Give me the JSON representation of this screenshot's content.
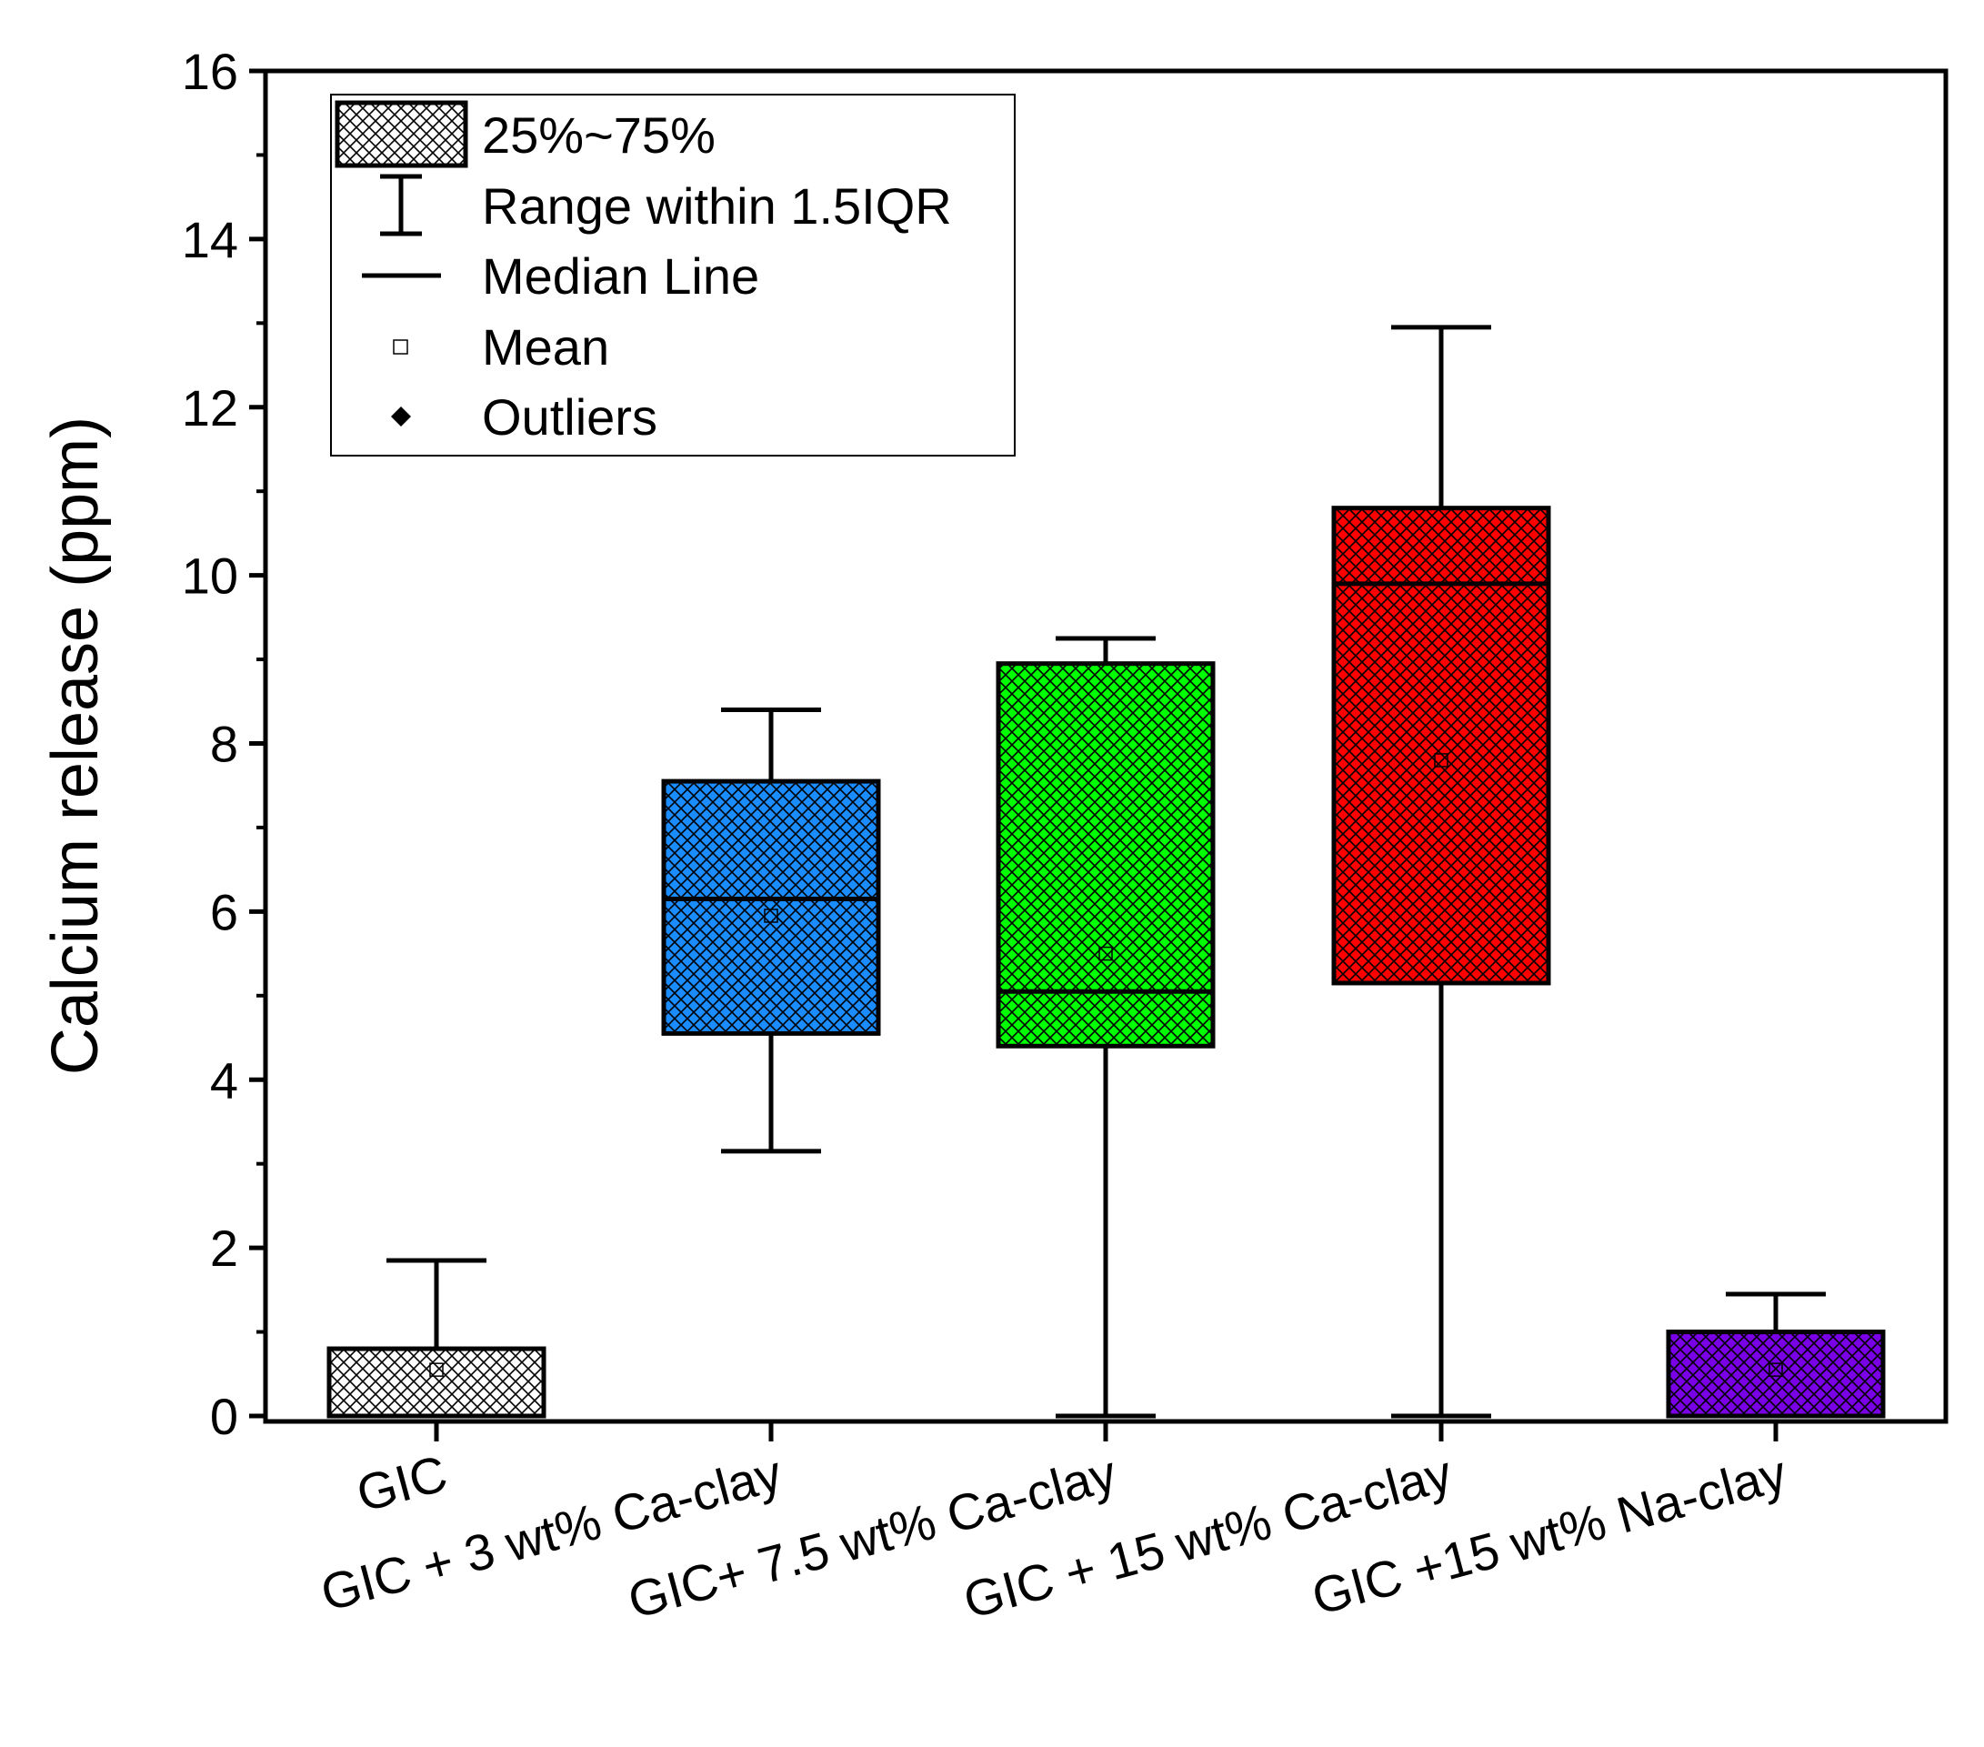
{
  "chart_data": {
    "type": "box",
    "title": "",
    "xlabel": "",
    "ylabel": "Calcium release (ppm)",
    "ylim": [
      0,
      16
    ],
    "yticks": [
      0,
      2,
      4,
      6,
      8,
      10,
      12,
      14,
      16
    ],
    "categories": [
      "GIC",
      "GIC + 3 wt% Ca-clay",
      "GIC+ 7.5 wt% Ca-clay",
      "GIC + 15 wt% Ca-clay",
      "GIC +15 wt% Na-clay"
    ],
    "boxes": [
      {
        "name": "GIC",
        "color": "#ffffff",
        "whisker_low": 0.0,
        "q1": 0.0,
        "median": 0.0,
        "q3": 0.8,
        "whisker_high": 1.85,
        "mean": 0.55
      },
      {
        "name": "GIC + 3 wt% Ca-clay",
        "color": "#1a8cff",
        "whisker_low": 3.15,
        "q1": 4.55,
        "median": 6.15,
        "q3": 7.55,
        "whisker_high": 8.4,
        "mean": 5.95
      },
      {
        "name": "GIC+ 7.5 wt% Ca-clay",
        "color": "#00ff00",
        "whisker_low": 0.0,
        "q1": 4.4,
        "median": 5.05,
        "q3": 8.95,
        "whisker_high": 9.25,
        "mean": 5.5
      },
      {
        "name": "GIC + 15 wt% Ca-clay",
        "color": "#ff0000",
        "whisker_low": 0.0,
        "q1": 5.15,
        "median": 9.9,
        "q3": 10.8,
        "whisker_high": 12.95,
        "mean": 7.8
      },
      {
        "name": "GIC +15 wt% Na-clay",
        "color": "#7a00e6",
        "whisker_low": 0.0,
        "q1": 0.0,
        "median": 0.0,
        "q3": 1.0,
        "whisker_high": 1.45,
        "mean": 0.55
      }
    ],
    "legend": {
      "position": "top-left",
      "entries": [
        {
          "symbol": "box",
          "label": "25%~75%"
        },
        {
          "symbol": "whisker",
          "label": "Range within 1.5IQR"
        },
        {
          "symbol": "line",
          "label": "Median Line"
        },
        {
          "symbol": "square",
          "label": "Mean"
        },
        {
          "symbol": "diamond",
          "label": "Outliers"
        }
      ]
    }
  }
}
